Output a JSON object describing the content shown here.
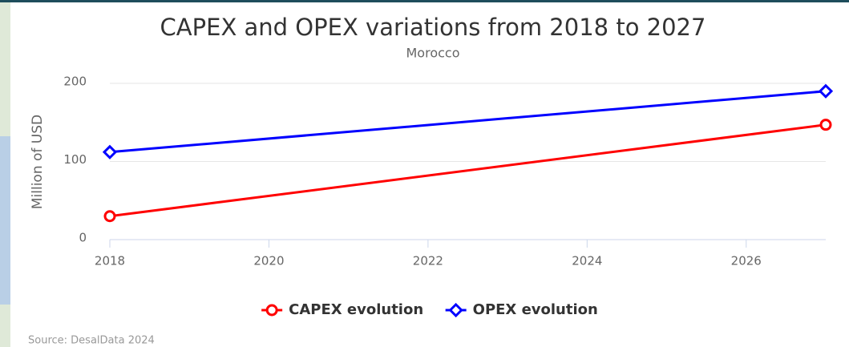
{
  "chart_data": {
    "type": "line",
    "title": "CAPEX and OPEX variations from 2018 to 2027",
    "subtitle": "Morocco",
    "y_label": "Million of USD",
    "source": "Source: DesalData 2024",
    "x": [
      2018,
      2027
    ],
    "series": [
      {
        "name": "CAPEX evolution",
        "color": "#ff0000",
        "marker": "circle",
        "values": [
          30,
          147
        ]
      },
      {
        "name": "OPEX evolution",
        "color": "#0000ff",
        "marker": "diamond",
        "values": [
          112,
          190
        ]
      }
    ],
    "xlim": [
      2018,
      2027
    ],
    "xticks": [
      2018,
      2020,
      2022,
      2024,
      2026
    ],
    "ylim": [
      0,
      200
    ],
    "yticks": [
      0,
      100,
      200
    ],
    "grid": true,
    "legend": "bottom"
  }
}
